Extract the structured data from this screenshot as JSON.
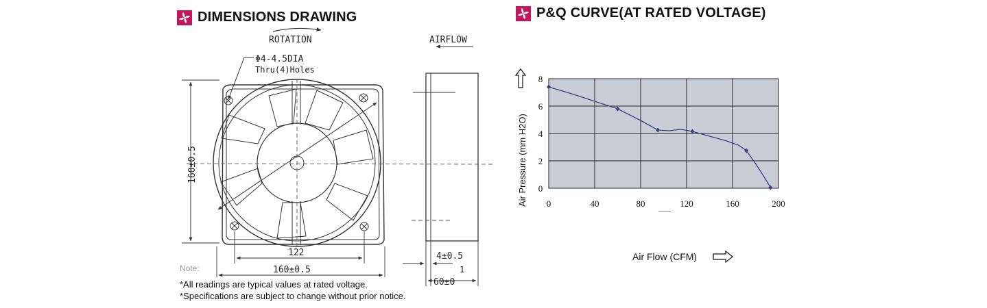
{
  "dimensions": {
    "title": "DIMENSIONS DRAWING",
    "rotation_label": "ROTATION",
    "airflow_label": "AIRFLOW",
    "hole_spec_line1": "Φ4-4.5DIA",
    "hole_spec_line2": "Thru(4)Holes",
    "height_dim": "160±0.5",
    "hole_spacing_dim": "122",
    "width_dim": "160±0.5",
    "flange_dim": "4±0.5",
    "depth_dim_top": "1",
    "depth_dim": "60±0",
    "note_label": "Note:",
    "note_1": "*All readings are typical values at rated voltage.",
    "note_2": "*Specifications are subject to change without prior notice."
  },
  "pq": {
    "title": "P&Q CURVE(AT RATED VOLTAGE)",
    "stray_mark": "___"
  },
  "chart_data": {
    "type": "line",
    "title": "P&Q CURVE(AT RATED VOLTAGE)",
    "xlabel": "Air Flow (CFM)",
    "ylabel": "Air Pressure (mm H2O)",
    "xlim": [
      0,
      200
    ],
    "ylim": [
      0,
      8
    ],
    "x_ticks": [
      "0",
      "40",
      "80",
      "120",
      "160",
      "200"
    ],
    "y_ticks": [
      "0",
      "2",
      "4",
      "6",
      "8"
    ],
    "grid": true,
    "background_color": "#c8cdd6",
    "line_color": "#3b3f8a",
    "series": [
      {
        "markers_x": [
          0,
          60,
          95,
          125,
          172,
          193
        ],
        "markers_y": [
          7.4,
          5.8,
          4.25,
          4.15,
          2.75,
          0.05
        ],
        "x": [
          0,
          20,
          40,
          60,
          80,
          95,
          105,
          115,
          125,
          140,
          155,
          165,
          172,
          180,
          187,
          193
        ],
        "y": [
          7.4,
          6.9,
          6.35,
          5.8,
          4.95,
          4.25,
          4.2,
          4.3,
          4.15,
          3.8,
          3.45,
          3.15,
          2.75,
          1.8,
          0.9,
          0.05
        ]
      }
    ]
  },
  "colors": {
    "logo": "#c2185b",
    "drawing_line": "#333333"
  },
  "icons": {
    "logo": "fan-logo-icon"
  }
}
